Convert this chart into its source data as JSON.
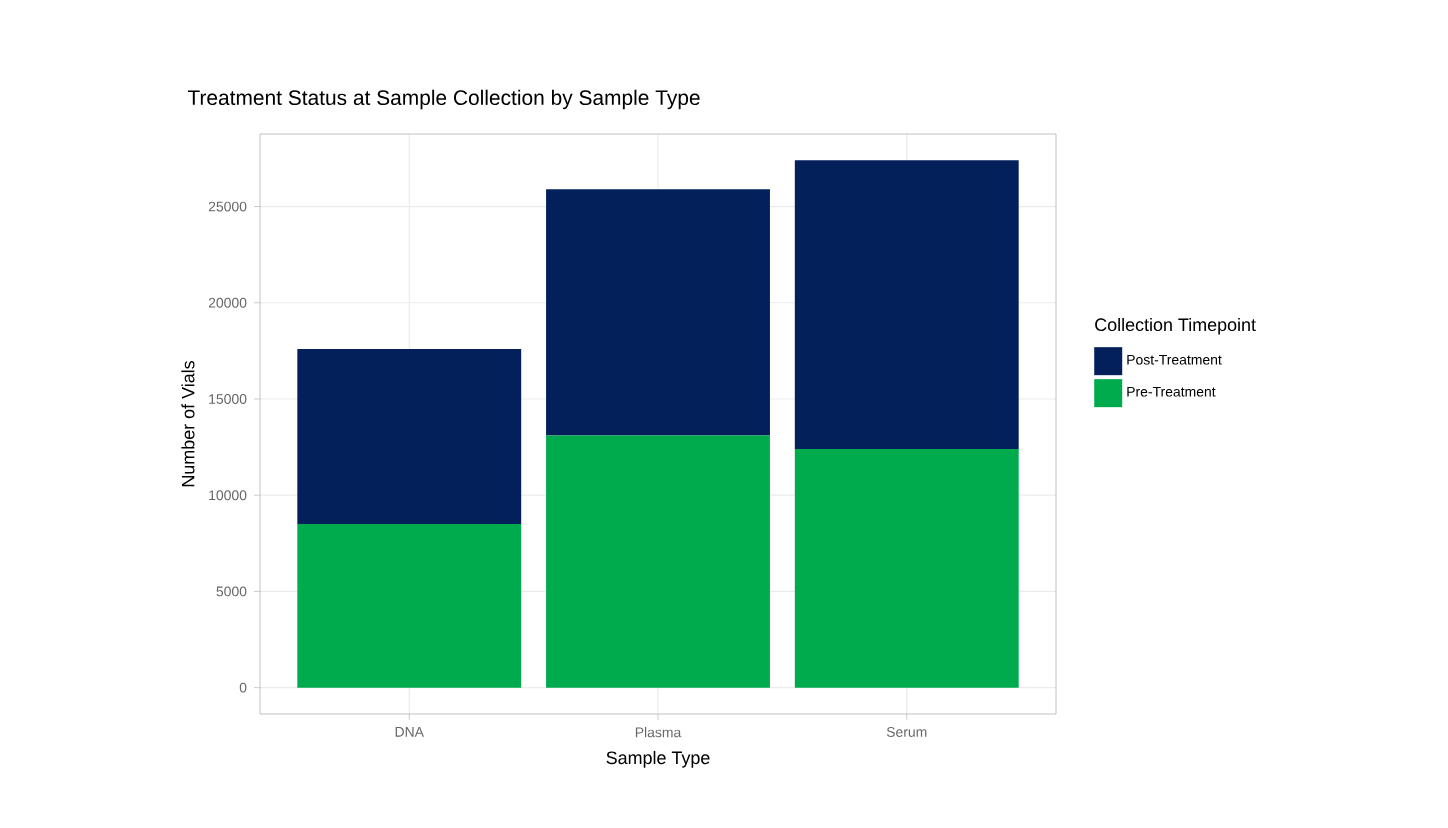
{
  "chart_data": {
    "type": "bar",
    "title": "Treatment Status at Sample Collection by Sample Type",
    "xlabel": "Sample Type",
    "ylabel": "Number of Vials",
    "legend_title": "Collection Timepoint",
    "categories": [
      "DNA",
      "Plasma",
      "Serum"
    ],
    "series": [
      {
        "name": "Pre-Treatment",
        "color": "#00ab4e",
        "values": [
          8500,
          13100,
          12400
        ]
      },
      {
        "name": "Post-Treatment",
        "color": "#03205b",
        "values": [
          9100,
          12800,
          15000
        ]
      }
    ],
    "stacked": true,
    "ylim": [
      -1370,
      28770
    ],
    "yticks": [
      0,
      5000,
      10000,
      15000,
      20000,
      25000
    ],
    "grid": true,
    "legend": "right"
  }
}
